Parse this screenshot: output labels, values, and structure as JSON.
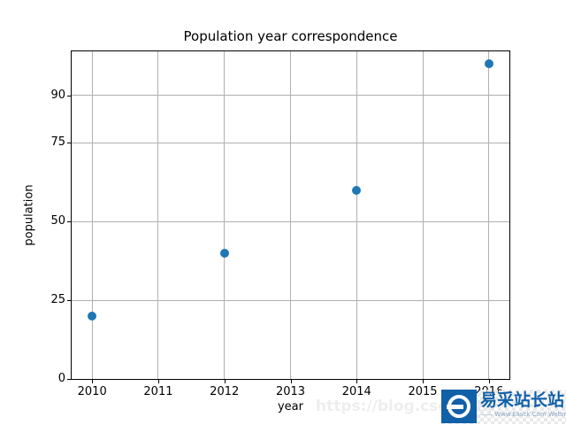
{
  "chart_data": {
    "type": "scatter",
    "title": "Population year correspondence",
    "xlabel": "year",
    "ylabel": "population",
    "x": [
      2010,
      2012,
      2014,
      2016
    ],
    "y": [
      20,
      40,
      60,
      100
    ],
    "xticks": [
      2010,
      2011,
      2012,
      2013,
      2014,
      2015,
      2016
    ],
    "yticks": [
      0,
      25,
      50,
      75,
      90
    ],
    "xlim": [
      2009.69,
      2016.31
    ],
    "ylim": [
      0,
      104
    ],
    "grid": true,
    "legend": "none",
    "marker_color": "#1f77b4",
    "grid_color": "#b0b0b0"
  },
  "watermark": {
    "faint_url": "https://blog.csdn.net",
    "logo_text": "易采站长站",
    "logo_tagline": "—— Www.Easck.Com Webmaster",
    "logo_color": "#1160a8"
  }
}
